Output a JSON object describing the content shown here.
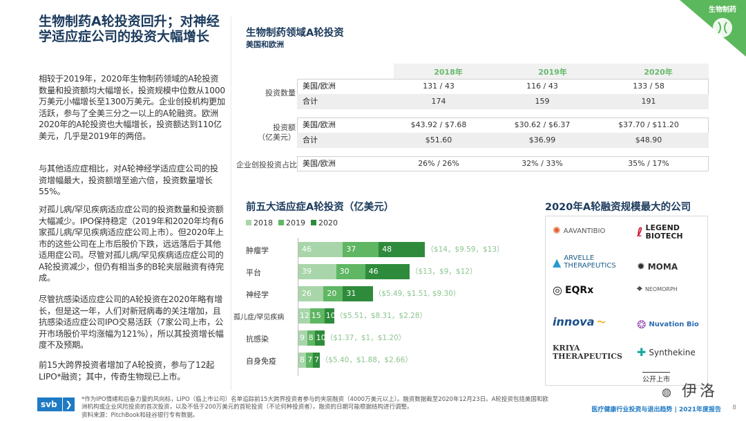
{
  "badge": {
    "label": "生物制药"
  },
  "title": "生物制药A轮投资回升；对神经学适应症公司的投资大幅增长",
  "paragraphs": [
    "相较于2019年，2020年生物制药领域的A轮投资数量和投资额均大幅增长，投资规模中位数从1000万美元小幅增长至1300万美元。企业创投机构更加活跃，参与了全美三分之一以上的A轮融资。欧洲2020年的A轮投资也大幅增长，投资额达到110亿美元，几乎是2019年的两倍。",
    "与其他适应症相比，对A轮神经学适应症公司的投资增幅最大，投资额增至逾六倍，投资数量增长55%。",
    "对孤儿病/罕见疾病适应症公司的投资数量和投资额大幅减少。IPO保持稳定（2019年和2020年均有6家孤儿病/罕见疾病适应症公司上市）。但2020年上市的这些公司在上市后股价下跌，远远落后于其他适用症公司。尽管对孤儿病/罕见疾病适应症公司的A轮投资减少，但仍有相当多的B轮夹层融资有待完成。",
    "尽管抗感染适应症公司的A轮投资在2020年略有增长，但是这一年，人们对新冠病毒的关注增加，且抗感染适应症公司IPO交易活跃（7家公司上市，公开市场股价平均涨幅为121%），所以其投资增长幅度不及预期。",
    "前15大跨界投资者增加了A轮投资，参与了12起LIPO*融资；其中，传奇生物现已上市。"
  ],
  "table": {
    "title": "生物制药领域A轮投资",
    "subtitle": "美国和欧洲",
    "years": [
      "2018年",
      "2019年",
      "2020年"
    ],
    "groups": [
      {
        "label": "投资数量",
        "rows": [
          {
            "label": "美国/欧洲",
            "values": [
              "131 / 43",
              "116 / 43",
              "133 / 58"
            ]
          },
          {
            "label": "合计",
            "values": [
              "174",
              "159",
              "191"
            ]
          }
        ]
      },
      {
        "label": "投资额\n（亿美元）",
        "rows": [
          {
            "label": "美国/欧洲",
            "values": [
              "$43.92 / $7.68",
              "$30.62 / $6.37",
              "$37.70 / $11.20"
            ]
          },
          {
            "label": "合计",
            "values": [
              "$51.60",
              "$36.99",
              "$48.90"
            ]
          }
        ]
      },
      {
        "label": "企业创投投资占比",
        "rows": [
          {
            "label": "美国/欧洲",
            "values": [
              "26% / 26%",
              "32% / 33%",
              "35% / 17%"
            ]
          }
        ]
      }
    ]
  },
  "chart_data": {
    "type": "bar",
    "title": "前五大适应症A轮投资（亿美元）",
    "categories": [
      "肿瘤学",
      "平台",
      "神经学",
      "孤儿症/罕见疾病",
      "抗感染",
      "自身免疫"
    ],
    "series": [
      {
        "name": "2018",
        "color": "#a8d5a9",
        "values": [
          46,
          39,
          26,
          12,
          9,
          8
        ]
      },
      {
        "name": "2019",
        "color": "#5fb663",
        "values": [
          37,
          30,
          20,
          15,
          8,
          7
        ]
      },
      {
        "name": "2020",
        "color": "#2e8b3b",
        "values": [
          48,
          46,
          31,
          10,
          10,
          7
        ]
      }
    ],
    "notes": [
      "（$14，$9.59，$13）",
      "（$13，$9，$12）",
      "（$5.49, $1.51, $9.30）",
      "（$5.51，$8.31，$2.28）",
      "（$1.37，$1，$1.20）",
      "（$5.40，$1.88，$2.66）"
    ]
  },
  "companies": {
    "title": "2020年A轮融资规模最大的公司",
    "logos": [
      "AAVANTIBIO",
      "LEGEND BIOTECH",
      "ARVELLE THERAPEUTICS",
      "MOMA",
      "EQRx",
      "NEOMORPH",
      "innova",
      "Nuvation Bio",
      "KRIYA THERAPEUTICS",
      "Synthekine"
    ],
    "public_note": "公开上市"
  },
  "footer": {
    "logo": "svb",
    "note1": "*作为IPO情绪和后备力量的风向标，LIPO（临上市公司）名单追踪前15大跨界投资者参与的夹层融资（4000万美元以上）。融资数据截至2020年12月23日。A轮投资包括美国和欧洲机构或企业风险投资的首次投资，以及不低于200万美元的首轮投资（不论何种投资者）。融资的日期可能根据结构进行调整。",
    "note2": "资料来源：PitchBook和硅谷银行专有数据。",
    "report": "医疗健康行业投资与退出趋势 | 2021年度报告",
    "page": "8",
    "watermark": "伊洛"
  }
}
